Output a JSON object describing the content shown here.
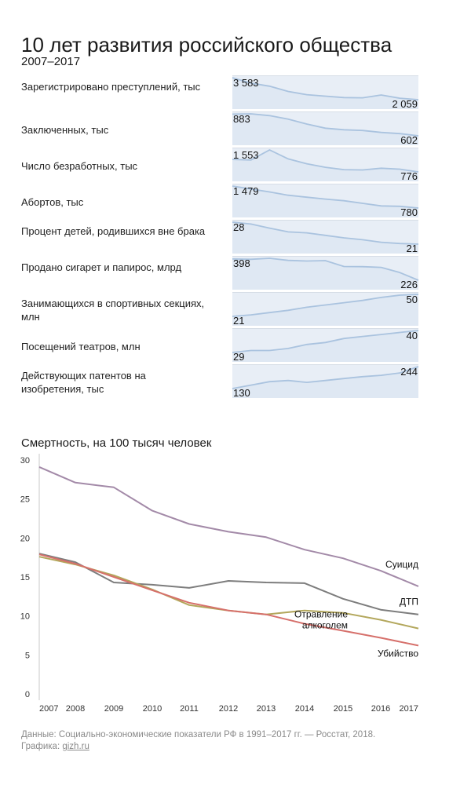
{
  "title": "10 лет развития российского общества",
  "subtitle": "2007–2017",
  "colors": {
    "spark_fill": "#e8eef6",
    "spark_line": "#aac3df",
    "suicide": "#a38aa8",
    "traffic": "#7d7d7d",
    "alcohol": "#b3a75c",
    "murder": "#d6706b"
  },
  "chart_data": [
    {
      "type": "area",
      "layout": "small-multiples",
      "x": [
        2007,
        2008,
        2009,
        2010,
        2011,
        2012,
        2013,
        2014,
        2015,
        2016,
        2017
      ],
      "series": [
        {
          "name": "Зарегистрировано преступлений, тыс",
          "start_label": "3 583",
          "end_label": "2 059",
          "values": [
            3583,
            3210,
            2995,
            2629,
            2405,
            2302,
            2206,
            2190,
            2388,
            2160,
            2059
          ]
        },
        {
          "name": "Заключенных, тыс",
          "start_label": "883",
          "end_label": "602",
          "values": [
            883,
            887,
            864,
            819,
            755,
            701,
            680,
            671,
            646,
            630,
            602
          ]
        },
        {
          "name": "Число безработных, тыс",
          "start_label": "1 553",
          "end_label": "776",
          "values": [
            1553,
            1522,
            2147,
            1589,
            1286,
            1065,
            918,
            900,
            1006,
            946,
            776
          ]
        },
        {
          "name": "Абортов, тыс",
          "start_label": "1 479",
          "end_label": "780",
          "values": [
            1479,
            1385,
            1292,
            1186,
            1124,
            1064,
            1012,
            930,
            848,
            836,
            780
          ]
        },
        {
          "name": "Процент детей, родившихся вне брака",
          "start_label": "28",
          "end_label": "21",
          "values": [
            28,
            27.4,
            26.1,
            24.9,
            24.6,
            23.8,
            23.0,
            22.4,
            21.6,
            21.2,
            21
          ]
        },
        {
          "name": "Продано сигарет и папирос, млрд",
          "start_label": "398",
          "end_label": "226",
          "values": [
            398,
            396,
            404,
            387,
            382,
            385,
            337,
            336,
            330,
            288,
            226
          ]
        },
        {
          "name": "Занимающихся в спортивных секциях, млн",
          "start_label": "21",
          "end_label": "50",
          "values": [
            21,
            23,
            26,
            29,
            33,
            36,
            39,
            42,
            46,
            49,
            50
          ]
        },
        {
          "name": "Посещений театров, млн",
          "start_label": "29",
          "end_label": "40",
          "values": [
            29,
            30,
            30,
            31,
            33,
            34,
            36,
            37,
            38,
            39,
            40
          ]
        },
        {
          "name": "Действующих патентов на изобретения, тыс",
          "start_label": "130",
          "end_label": "244",
          "values": [
            130,
            148,
            166,
            172,
            162,
            172,
            182,
            192,
            199,
            211,
            244
          ]
        }
      ]
    },
    {
      "type": "line",
      "title": "Смертность, на 100 тысяч человек",
      "x": [
        2007,
        2008,
        2009,
        2010,
        2011,
        2012,
        2013,
        2014,
        2015,
        2016,
        2017
      ],
      "x_ticks": [
        "2007",
        "2008",
        "2009",
        "2010",
        "2011",
        "2012",
        "2013",
        "2014",
        "2015",
        "2016",
        "2017"
      ],
      "y_ticks": [
        "0",
        "5",
        "10",
        "15",
        "20",
        "25",
        "30"
      ],
      "ylim": [
        0,
        30
      ],
      "grid": false,
      "series": [
        {
          "name": "Суицид",
          "key": "suicide",
          "values": [
            29.1,
            27.1,
            26.5,
            23.5,
            21.8,
            20.8,
            20.1,
            18.5,
            17.4,
            15.8,
            13.8
          ]
        },
        {
          "name": "ДТП",
          "key": "traffic",
          "values": [
            18.0,
            16.9,
            14.3,
            14.0,
            13.6,
            14.5,
            14.3,
            14.2,
            12.2,
            10.8,
            10.2
          ]
        },
        {
          "name": "Отравление алкоголем",
          "key": "alcohol",
          "values": [
            17.6,
            16.6,
            15.2,
            13.4,
            11.4,
            10.7,
            10.2,
            10.7,
            10.4,
            9.5,
            8.4
          ]
        },
        {
          "name": "Убийство",
          "key": "murder",
          "values": [
            17.9,
            16.7,
            15.0,
            13.3,
            11.7,
            10.7,
            10.2,
            9.0,
            8.1,
            7.2,
            6.2
          ]
        }
      ]
    }
  ],
  "source": "Данные: Социально-экономические показатели РФ в 1991–2017 гг. — Росстат, 2018.",
  "credit_prefix": "Графика: ",
  "credit_link": "gizh.ru"
}
